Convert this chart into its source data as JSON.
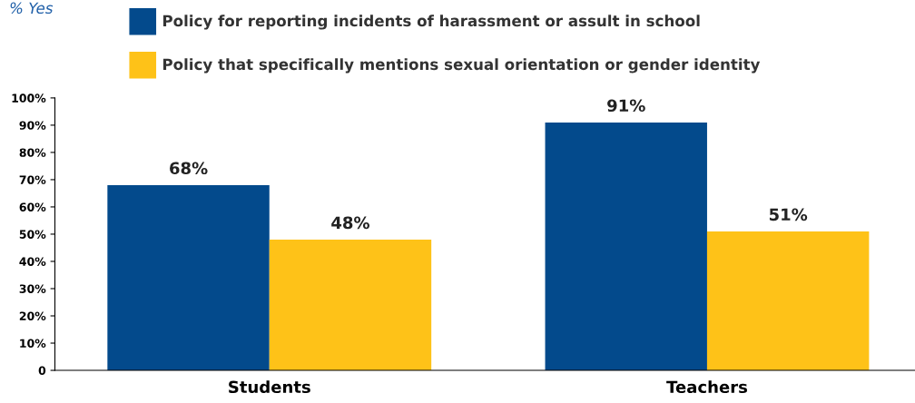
{
  "chart_data": {
    "type": "bar",
    "title": "% Yes",
    "categories": [
      "Students",
      "Teachers"
    ],
    "series": [
      {
        "name": "Policy for reporting incidents of harassment or assult in school",
        "color": "#034a8c",
        "values": [
          68,
          91
        ],
        "value_labels": [
          "68%",
          "91%"
        ]
      },
      {
        "name": "Policy that specifically mentions sexual orientation or gender identity",
        "color": "#fec218",
        "values": [
          48,
          51
        ],
        "value_labels": [
          "48%",
          "51%"
        ]
      }
    ],
    "ylim": [
      0,
      100
    ],
    "yticks": [
      0,
      {
        "value": 10,
        "label": "10%"
      },
      {
        "value": 20,
        "label": "20%"
      },
      {
        "value": 30,
        "label": "30%"
      },
      {
        "value": 40,
        "label": "40%"
      },
      {
        "value": 50,
        "label": "50%"
      },
      {
        "value": 60,
        "label": "60%"
      },
      {
        "value": 70,
        "label": "70%"
      },
      {
        "value": 80,
        "label": "80%"
      },
      {
        "value": 90,
        "label": "90%"
      },
      {
        "value": 100,
        "label": "100%"
      }
    ],
    "grid": false,
    "legend": "top"
  }
}
